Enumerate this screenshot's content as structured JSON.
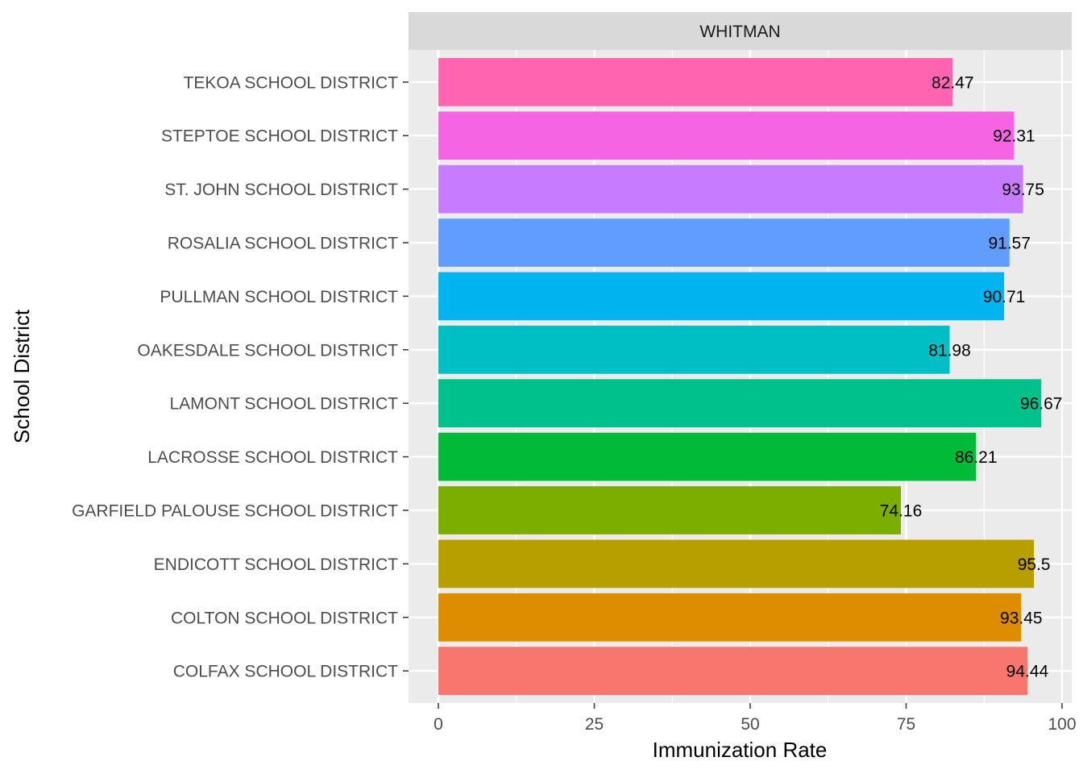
{
  "chart_data": {
    "type": "bar",
    "orientation": "horizontal",
    "facet_label": "WHITMAN",
    "xlabel": "Immunization Rate",
    "ylabel": "School District",
    "xlim": [
      0,
      100
    ],
    "x_ticks": [
      0,
      25,
      50,
      75,
      100
    ],
    "grid": true,
    "legend": "none",
    "categories": [
      "COLFAX SCHOOL DISTRICT",
      "COLTON SCHOOL DISTRICT",
      "ENDICOTT SCHOOL DISTRICT",
      "GARFIELD PALOUSE SCHOOL DISTRICT",
      "LACROSSE SCHOOL DISTRICT",
      "LAMONT SCHOOL DISTRICT",
      "OAKESDALE SCHOOL DISTRICT",
      "PULLMAN SCHOOL DISTRICT",
      "ROSALIA SCHOOL DISTRICT",
      "ST. JOHN SCHOOL DISTRICT",
      "STEPTOE SCHOOL DISTRICT",
      "TEKOA SCHOOL DISTRICT"
    ],
    "values": [
      94.44,
      93.45,
      95.5,
      74.16,
      86.21,
      96.67,
      81.98,
      90.71,
      91.57,
      93.75,
      92.31,
      82.47
    ],
    "data_labels": [
      "94.44",
      "93.45",
      "95.5",
      "74.16",
      "86.21",
      "96.67",
      "81.98",
      "90.71",
      "91.57",
      "93.75",
      "92.31",
      "82.47"
    ],
    "colors": [
      "#F8766D",
      "#DE8C00",
      "#B79F00",
      "#7CAE00",
      "#00BA38",
      "#00C08B",
      "#00BFC4",
      "#00B4F0",
      "#619CFF",
      "#C77CFF",
      "#F564E3",
      "#FF64B0"
    ]
  }
}
